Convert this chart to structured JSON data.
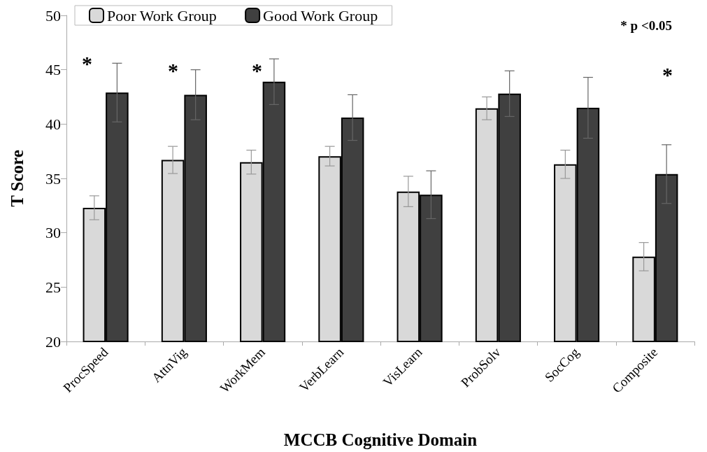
{
  "chart_data": {
    "type": "bar",
    "xlabel": "MCCB Cognitive Domain",
    "ylabel": "T Score",
    "categories": [
      "ProcSpeed",
      "AttnVig",
      "WorkMem",
      "VerbLearn",
      "VisLearn",
      "ProbSolv",
      "SocCog",
      "Composite"
    ],
    "series": [
      {
        "name": "Poor Work Group",
        "color": "#d9d9d9",
        "values": [
          32.3,
          36.7,
          36.5,
          37.05,
          33.8,
          41.45,
          36.3,
          27.8
        ],
        "errors": [
          1.1,
          1.25,
          1.1,
          0.9,
          1.4,
          1.05,
          1.3,
          1.3
        ]
      },
      {
        "name": "Good Work Group",
        "color": "#404040",
        "values": [
          42.9,
          42.7,
          43.9,
          40.6,
          33.5,
          42.8,
          41.5,
          35.4
        ],
        "errors": [
          2.7,
          2.3,
          2.1,
          2.1,
          2.2,
          2.1,
          2.8,
          2.7
        ]
      }
    ],
    "ylim": [
      20,
      50
    ],
    "yticks": [
      20,
      25,
      30,
      35,
      40,
      45,
      50
    ],
    "grid": false,
    "legend": "top left",
    "annotations": [
      "*",
      "*",
      "*",
      "*",
      "* p <0.05"
    ]
  }
}
